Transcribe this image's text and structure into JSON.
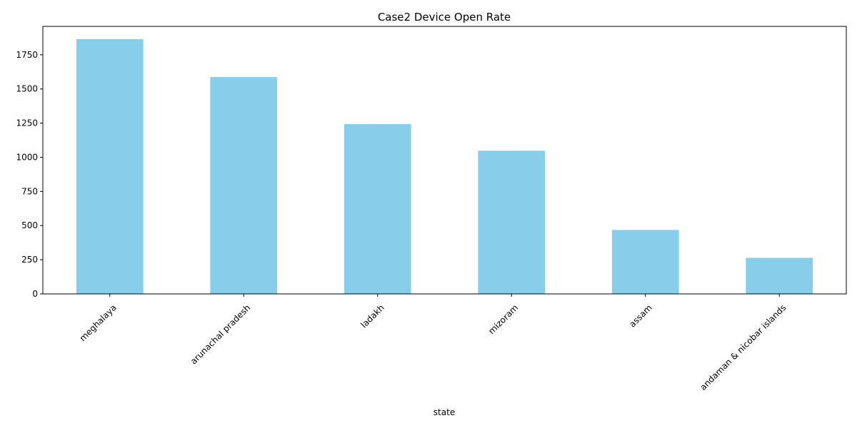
{
  "chart_data": {
    "type": "bar",
    "title": "Case2 Device Open Rate",
    "xlabel": "state",
    "ylabel": "",
    "categories": [
      "meghalaya",
      "arunachal pradesh",
      "ladakh",
      "mizoram",
      "assam",
      "andaman & nicobar islands"
    ],
    "values": [
      1865,
      1587,
      1243,
      1048,
      468,
      264
    ],
    "ylim": [
      0,
      1958
    ],
    "yticks": [
      0,
      250,
      500,
      750,
      1000,
      1250,
      1500,
      1750
    ],
    "bar_color": "#87ceeb",
    "grid": false,
    "legend": "none"
  }
}
